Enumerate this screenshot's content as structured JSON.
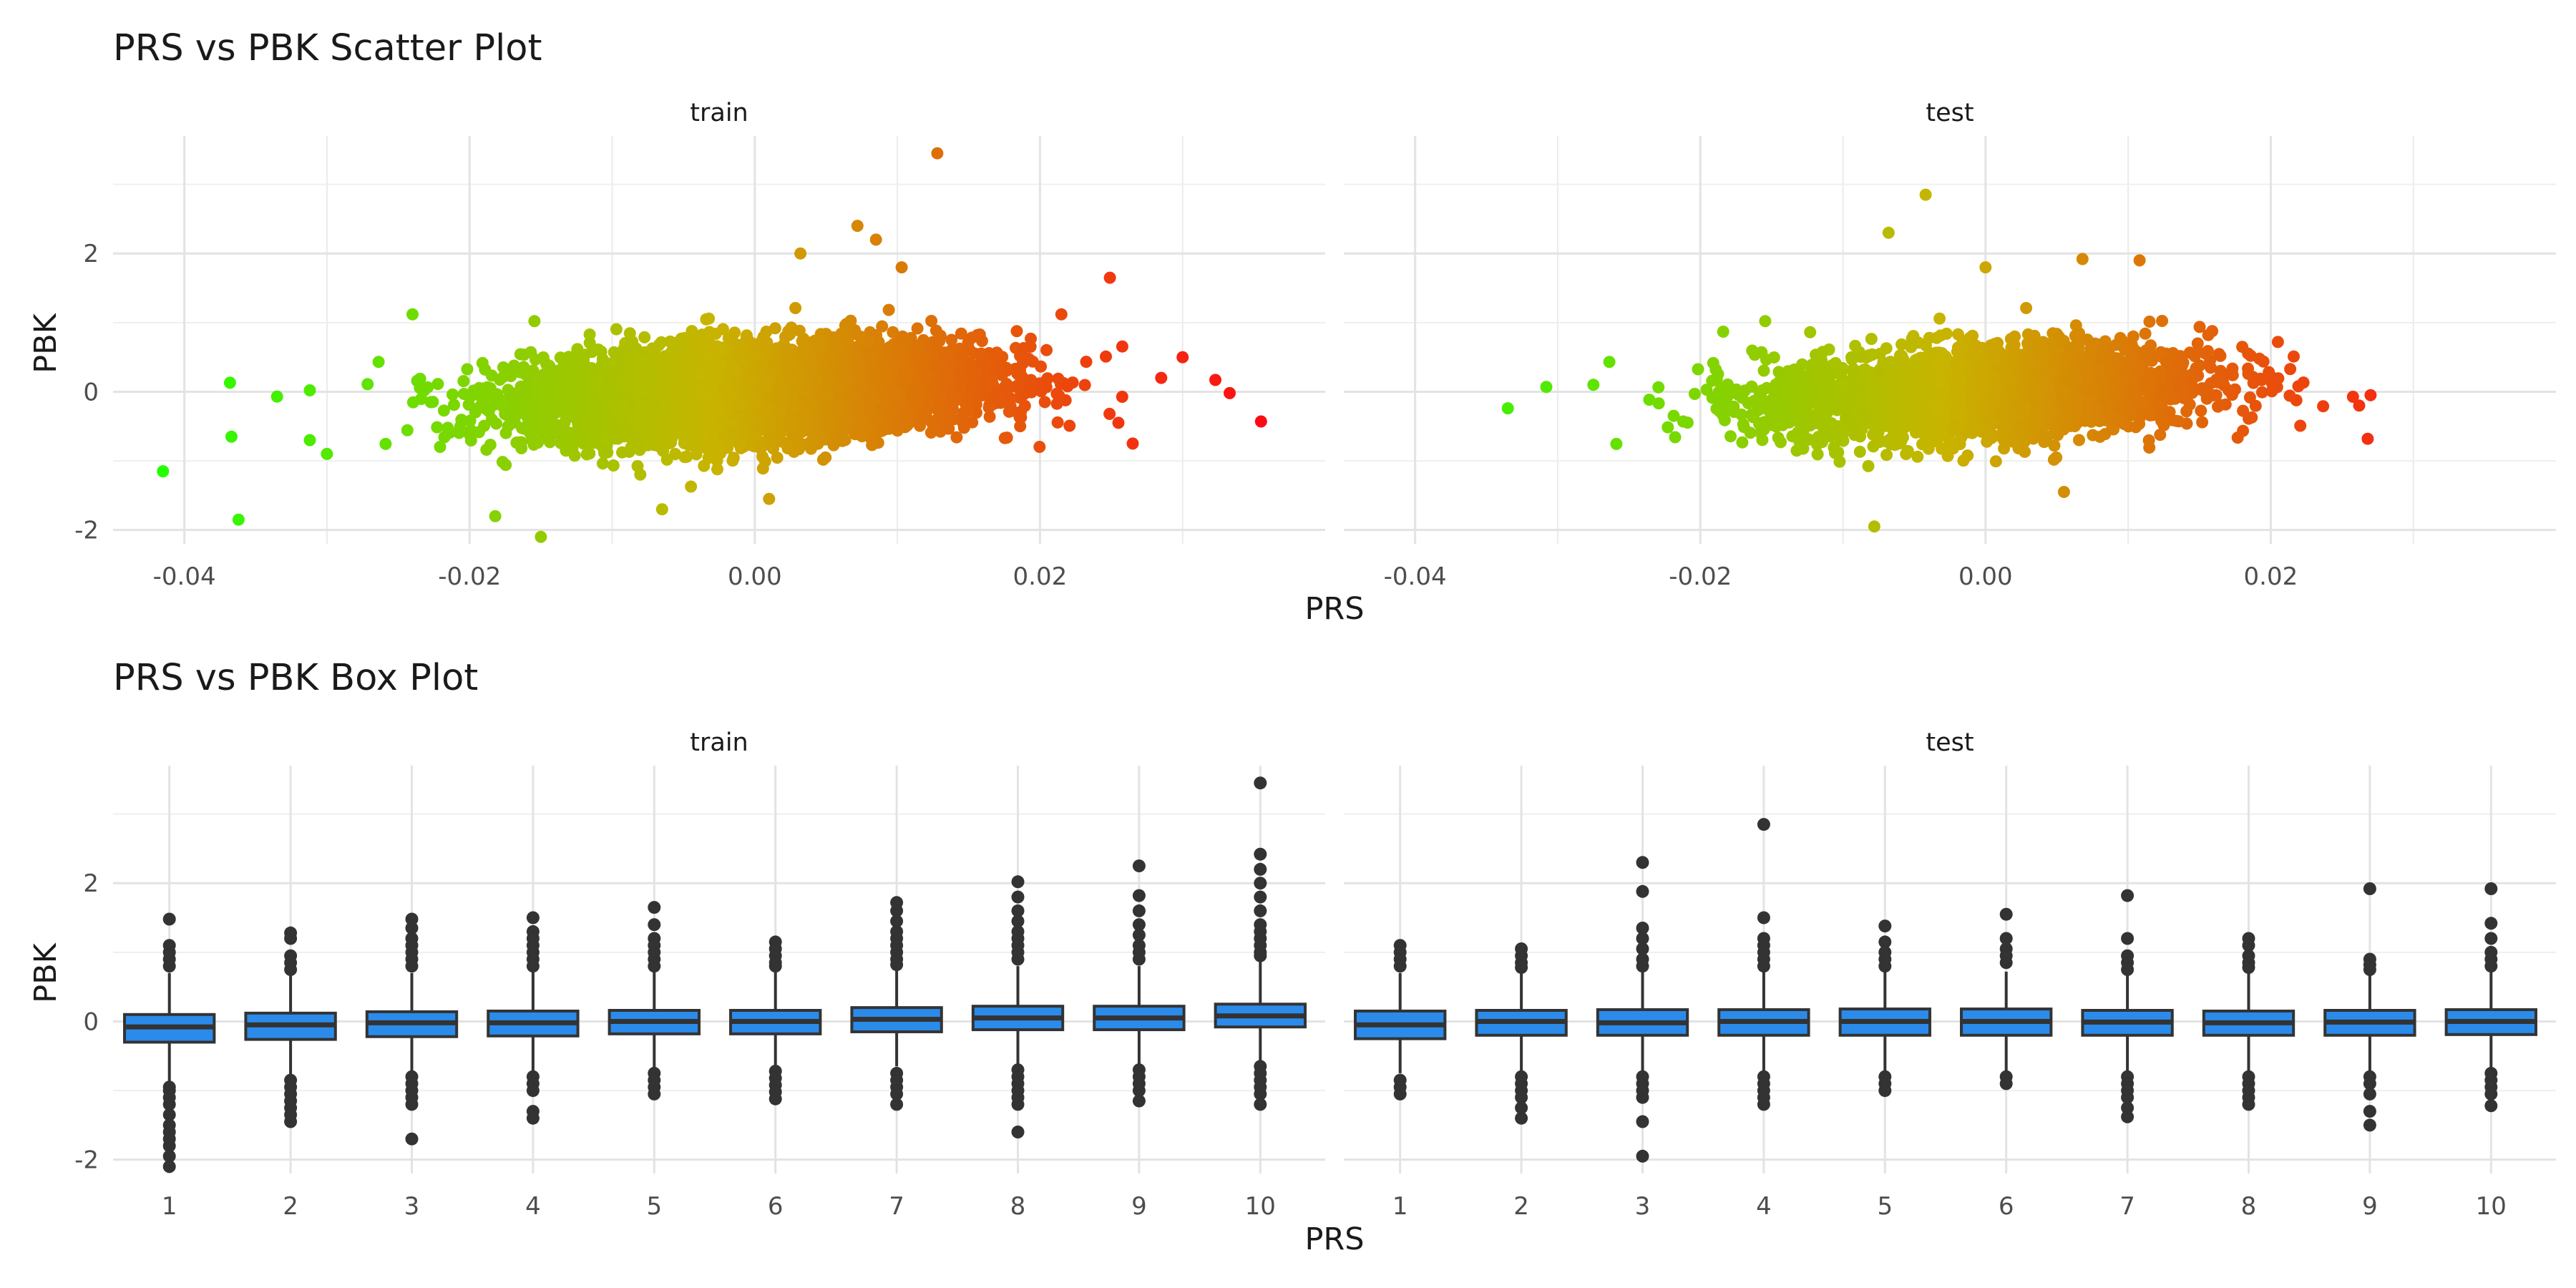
{
  "chart_data": [
    {
      "type": "scatter",
      "title": "PRS vs PBK Scatter Plot",
      "xlabel": "PRS",
      "ylabel": "PBK",
      "facets": [
        "train",
        "test"
      ],
      "xlim": [
        -0.045,
        0.04
      ],
      "ylim": [
        -2.2,
        3.7
      ],
      "x_ticks": [
        -0.04,
        -0.02,
        0.0,
        0.02
      ],
      "x_tick_labels": [
        "-0.04",
        "-0.02",
        "0.00",
        "0.02"
      ],
      "y_ticks": [
        -2,
        0,
        2
      ],
      "y_tick_labels": [
        "-2",
        "0",
        "2"
      ],
      "color_scale": {
        "low": "#22ff00",
        "mid": "#c8b400",
        "high": "#ff0a14"
      },
      "series": [
        {
          "facet": "train",
          "points_described": "dense elliptical cloud centered at (0.00, 0.0), x sd ~0.008, y sd ~0.35, ~8000 points",
          "outliers": [
            {
              "x": -0.0415,
              "y": -1.15
            },
            {
              "x": -0.0368,
              "y": 0.13
            },
            {
              "x": -0.0367,
              "y": -0.65
            },
            {
              "x": -0.0362,
              "y": -1.85
            },
            {
              "x": -0.0335,
              "y": -0.07
            },
            {
              "x": -0.0312,
              "y": 0.02
            },
            {
              "x": -0.0312,
              "y": -0.7
            },
            {
              "x": -0.03,
              "y": -0.9
            },
            {
              "x": -0.024,
              "y": 1.12
            },
            {
              "x": -0.0182,
              "y": -1.8
            },
            {
              "x": -0.015,
              "y": -2.1
            },
            {
              "x": 0.0128,
              "y": 3.45
            },
            {
              "x": 0.0072,
              "y": 2.4
            },
            {
              "x": 0.0085,
              "y": 2.2
            },
            {
              "x": 0.0103,
              "y": 1.8
            },
            {
              "x": 0.0032,
              "y": 2.0
            },
            {
              "x": 0.0249,
              "y": 1.65
            },
            {
              "x": 0.03,
              "y": 0.5
            },
            {
              "x": 0.0323,
              "y": 0.17
            },
            {
              "x": 0.0333,
              "y": -0.02
            },
            {
              "x": 0.0355,
              "y": -0.43
            },
            {
              "x": 0.0265,
              "y": -0.75
            },
            {
              "x": 0.0255,
              "y": -0.45
            },
            {
              "x": 0.0285,
              "y": 0.2
            },
            {
              "x": 0.0215,
              "y": 1.12
            },
            {
              "x": 0.001,
              "y": -1.55
            },
            {
              "x": -0.0065,
              "y": -1.7
            }
          ]
        },
        {
          "facet": "test",
          "points_described": "dense elliptical cloud centered at (0.00, 0.0), x sd ~0.008, y sd ~0.33, ~2000 points",
          "outliers": [
            {
              "x": -0.0335,
              "y": -0.24
            },
            {
              "x": -0.0308,
              "y": 0.07
            },
            {
              "x": -0.0275,
              "y": 0.1
            },
            {
              "x": -0.0042,
              "y": 2.85
            },
            {
              "x": -0.0068,
              "y": 2.3
            },
            {
              "x": 0.0068,
              "y": 1.92
            },
            {
              "x": 0.0108,
              "y": 1.9
            },
            {
              "x": 0.0,
              "y": 1.8
            },
            {
              "x": -0.0078,
              "y": -1.95
            },
            {
              "x": 0.0055,
              "y": -1.45
            },
            {
              "x": 0.027,
              "y": -0.05
            },
            {
              "x": 0.0262,
              "y": -0.2
            },
            {
              "x": 0.0268,
              "y": -0.68
            },
            {
              "x": 0.0205,
              "y": 0.72
            },
            {
              "x": 0.018,
              "y": 0.65
            }
          ]
        }
      ]
    },
    {
      "type": "box",
      "title": "PRS vs PBK Box Plot",
      "xlabel": "PRS",
      "ylabel": "PBK",
      "facets": [
        "train",
        "test"
      ],
      "categories": [
        "1",
        "2",
        "3",
        "4",
        "5",
        "6",
        "7",
        "8",
        "9",
        "10"
      ],
      "ylim": [
        -2.2,
        3.7
      ],
      "y_ticks": [
        -2,
        0,
        2
      ],
      "y_tick_labels": [
        "-2",
        "0",
        "2"
      ],
      "box_color": "#2b8bea",
      "series": [
        {
          "facet": "train",
          "boxes": [
            {
              "q1": -0.3,
              "median": -0.08,
              "q3": 0.1,
              "whisker_low": -0.9,
              "whisker_high": 0.7,
              "outliers": [
                1.48,
                1.1,
                1.0,
                0.9,
                0.8,
                -0.95,
                -1.0,
                -1.1,
                -1.2,
                -1.35,
                -1.5,
                -1.6,
                -1.7,
                -1.8,
                -1.95,
                -2.1
              ]
            },
            {
              "q1": -0.26,
              "median": -0.05,
              "q3": 0.12,
              "whisker_low": -0.8,
              "whisker_high": 0.68,
              "outliers": [
                1.28,
                1.2,
                0.95,
                0.85,
                0.75,
                -0.85,
                -0.95,
                -1.05,
                -1.15,
                -1.25,
                -1.35,
                -1.45
              ]
            },
            {
              "q1": -0.22,
              "median": -0.02,
              "q3": 0.14,
              "whisker_low": -0.75,
              "whisker_high": 0.7,
              "outliers": [
                1.48,
                1.35,
                1.2,
                1.1,
                1.0,
                0.9,
                0.8,
                -0.8,
                -0.9,
                -1.0,
                -1.1,
                -1.2,
                -1.7
              ]
            },
            {
              "q1": -0.21,
              "median": -0.02,
              "q3": 0.15,
              "whisker_low": -0.72,
              "whisker_high": 0.72,
              "outliers": [
                1.5,
                1.3,
                1.2,
                1.1,
                1.0,
                0.9,
                0.8,
                -0.8,
                -0.9,
                -1.0,
                -1.3,
                -1.4
              ]
            },
            {
              "q1": -0.18,
              "median": 0.0,
              "q3": 0.16,
              "whisker_low": -0.68,
              "whisker_high": 0.72,
              "outliers": [
                1.65,
                1.4,
                1.2,
                1.1,
                1.0,
                0.9,
                0.8,
                -0.75,
                -0.85,
                -0.95,
                -1.05
              ]
            },
            {
              "q1": -0.18,
              "median": 0.0,
              "q3": 0.16,
              "whisker_low": -0.66,
              "whisker_high": 0.72,
              "outliers": [
                1.15,
                1.05,
                0.95,
                0.85,
                0.8,
                -0.72,
                -0.82,
                -0.92,
                -1.02,
                -1.12
              ]
            },
            {
              "q1": -0.15,
              "median": 0.03,
              "q3": 0.2,
              "whisker_low": -0.65,
              "whisker_high": 0.75,
              "outliers": [
                1.72,
                1.6,
                1.45,
                1.3,
                1.2,
                1.1,
                1.0,
                0.9,
                0.82,
                -0.75,
                -0.85,
                -0.95,
                -1.05,
                -1.2
              ]
            },
            {
              "q1": -0.12,
              "median": 0.05,
              "q3": 0.22,
              "whisker_low": -0.62,
              "whisker_high": 0.8,
              "outliers": [
                2.02,
                1.8,
                1.6,
                1.45,
                1.3,
                1.2,
                1.1,
                1.0,
                0.9,
                -0.7,
                -0.8,
                -0.9,
                -1.0,
                -1.1,
                -1.2,
                -1.6
              ]
            },
            {
              "q1": -0.12,
              "median": 0.05,
              "q3": 0.22,
              "whisker_low": -0.62,
              "whisker_high": 0.8,
              "outliers": [
                2.25,
                1.82,
                1.6,
                1.4,
                1.25,
                1.1,
                1.0,
                0.9,
                -0.7,
                -0.8,
                -0.9,
                -1.0,
                -1.15
              ]
            },
            {
              "q1": -0.08,
              "median": 0.08,
              "q3": 0.25,
              "whisker_low": -0.6,
              "whisker_high": 0.88,
              "outliers": [
                3.45,
                2.42,
                2.2,
                2.0,
                1.8,
                1.6,
                1.4,
                1.3,
                1.2,
                1.1,
                1.0,
                0.95,
                -0.65,
                -0.75,
                -0.85,
                -0.95,
                -1.05,
                -1.2
              ]
            }
          ]
        },
        {
          "facet": "test",
          "boxes": [
            {
              "q1": -0.25,
              "median": -0.05,
              "q3": 0.15,
              "whisker_low": -0.75,
              "whisker_high": 0.7,
              "outliers": [
                1.1,
                1.0,
                0.9,
                0.8,
                -0.85,
                -0.95,
                -1.05
              ]
            },
            {
              "q1": -0.2,
              "median": 0.0,
              "q3": 0.16,
              "whisker_low": -0.72,
              "whisker_high": 0.72,
              "outliers": [
                1.05,
                0.95,
                0.85,
                0.78,
                -0.8,
                -0.9,
                -1.0,
                -1.1,
                -1.25,
                -1.4
              ]
            },
            {
              "q1": -0.2,
              "median": -0.02,
              "q3": 0.17,
              "whisker_low": -0.72,
              "whisker_high": 0.72,
              "outliers": [
                2.3,
                1.88,
                1.35,
                1.2,
                1.05,
                0.9,
                0.8,
                -0.8,
                -0.9,
                -1.0,
                -1.1,
                -1.45,
                -1.95
              ]
            },
            {
              "q1": -0.2,
              "median": 0.0,
              "q3": 0.17,
              "whisker_low": -0.72,
              "whisker_high": 0.72,
              "outliers": [
                2.85,
                1.5,
                1.2,
                1.1,
                1.0,
                0.9,
                0.8,
                -0.8,
                -0.9,
                -1.0,
                -1.1,
                -1.2
              ]
            },
            {
              "q1": -0.2,
              "median": 0.0,
              "q3": 0.18,
              "whisker_low": -0.72,
              "whisker_high": 0.72,
              "outliers": [
                1.38,
                1.15,
                1.0,
                0.9,
                0.8,
                -0.8,
                -0.9,
                -1.0
              ]
            },
            {
              "q1": -0.2,
              "median": 0.0,
              "q3": 0.18,
              "whisker_low": -0.72,
              "whisker_high": 0.72,
              "outliers": [
                1.55,
                1.2,
                1.05,
                0.95,
                0.85,
                -0.8,
                -0.9
              ]
            },
            {
              "q1": -0.2,
              "median": -0.01,
              "q3": 0.16,
              "whisker_low": -0.72,
              "whisker_high": 0.7,
              "outliers": [
                1.82,
                1.2,
                0.95,
                0.85,
                0.75,
                -0.8,
                -0.9,
                -1.0,
                -1.1,
                -1.25,
                -1.38
              ]
            },
            {
              "q1": -0.2,
              "median": -0.02,
              "q3": 0.15,
              "whisker_low": -0.72,
              "whisker_high": 0.7,
              "outliers": [
                1.2,
                1.1,
                0.95,
                0.85,
                0.78,
                -0.8,
                -0.9,
                -1.0,
                -1.1,
                -1.2
              ]
            },
            {
              "q1": -0.2,
              "median": -0.01,
              "q3": 0.16,
              "whisker_low": -0.72,
              "whisker_high": 0.7,
              "outliers": [
                1.92,
                0.9,
                0.82,
                0.75,
                -0.8,
                -0.9,
                -1.05,
                -1.3,
                -1.5
              ]
            },
            {
              "q1": -0.19,
              "median": 0.0,
              "q3": 0.17,
              "whisker_low": -0.7,
              "whisker_high": 0.72,
              "outliers": [
                1.92,
                1.42,
                1.2,
                1.0,
                0.9,
                0.8,
                -0.75,
                -0.85,
                -0.95,
                -1.05,
                -1.22
              ]
            }
          ]
        }
      ]
    }
  ]
}
